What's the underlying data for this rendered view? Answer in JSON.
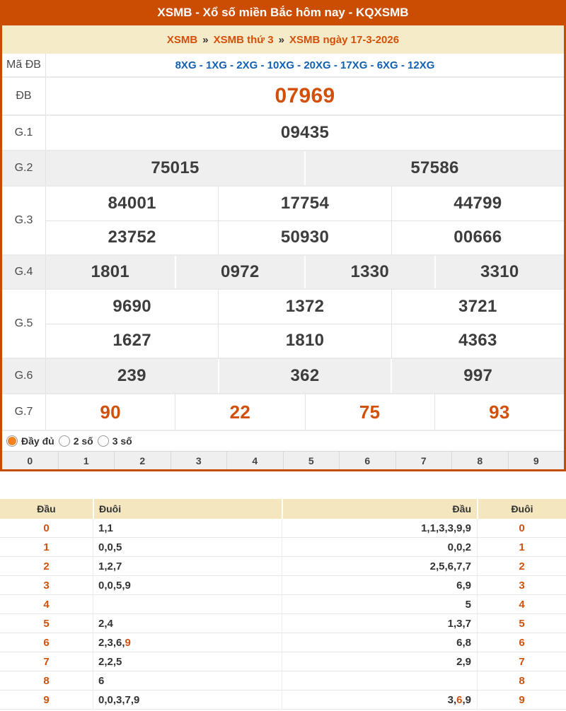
{
  "header": {
    "title": "XSMB - Xổ số miền Bắc hôm nay - KQXSMB"
  },
  "breadcrumb": {
    "separator": "»",
    "items": [
      "XSMB",
      "XSMB thứ 3",
      "XSMB ngày 17-3-2026"
    ]
  },
  "results": {
    "ma_db_label": "Mã ĐB",
    "ma_db_value": "8XG - 1XG - 2XG - 10XG - 20XG - 17XG - 6XG - 12XG",
    "rows": [
      {
        "key": "db",
        "label": "ĐB",
        "grey": false,
        "values": [
          [
            "07969"
          ]
        ]
      },
      {
        "key": "g1",
        "label": "G.1",
        "grey": false,
        "values": [
          [
            "09435"
          ]
        ]
      },
      {
        "key": "g2",
        "label": "G.2",
        "grey": true,
        "values": [
          [
            "75015",
            "57586"
          ]
        ]
      },
      {
        "key": "g3",
        "label": "G.3",
        "grey": false,
        "values": [
          [
            "84001",
            "17754",
            "44799"
          ],
          [
            "23752",
            "50930",
            "00666"
          ]
        ]
      },
      {
        "key": "g4",
        "label": "G.4",
        "grey": true,
        "values": [
          [
            "1801",
            "0972",
            "1330",
            "3310"
          ]
        ]
      },
      {
        "key": "g5",
        "label": "G.5",
        "grey": false,
        "values": [
          [
            "9690",
            "1372",
            "3721"
          ],
          [
            "1627",
            "1810",
            "4363"
          ]
        ]
      },
      {
        "key": "g6",
        "label": "G.6",
        "grey": true,
        "values": [
          [
            "239",
            "362",
            "997"
          ]
        ]
      },
      {
        "key": "g7",
        "label": "G.7",
        "grey": false,
        "values": [
          [
            "90",
            "22",
            "75",
            "93"
          ]
        ]
      }
    ]
  },
  "filters": {
    "options": [
      {
        "label": "Đầy đủ",
        "selected": true
      },
      {
        "label": "2 số",
        "selected": false
      },
      {
        "label": "3 số",
        "selected": false
      }
    ]
  },
  "digit_row": [
    "0",
    "1",
    "2",
    "3",
    "4",
    "5",
    "6",
    "7",
    "8",
    "9"
  ],
  "stats": {
    "header": {
      "dau_left": "Đầu",
      "duoi_left": "Đuôi",
      "dau_right": "Đầu",
      "duoi_right": "Đuôi"
    },
    "rows": [
      {
        "digit": "0",
        "duoi": [
          "1,1"
        ],
        "dau": [
          "1,1,3,3,9,9"
        ]
      },
      {
        "digit": "1",
        "duoi": [
          "0,0,5"
        ],
        "dau": [
          "0,0,2"
        ]
      },
      {
        "digit": "2",
        "duoi": [
          "1,2,7"
        ],
        "dau": [
          "2,5,6,7,7"
        ]
      },
      {
        "digit": "3",
        "duoi": [
          "0,0,5,9"
        ],
        "dau": [
          "6,9"
        ]
      },
      {
        "digit": "4",
        "duoi": [],
        "dau": [
          "5"
        ]
      },
      {
        "digit": "5",
        "duoi": [
          "2,4"
        ],
        "dau": [
          "1,3,7"
        ]
      },
      {
        "digit": "6",
        "duoi": [
          "2,3,6,",
          {
            "t": "9",
            "hl": true
          }
        ],
        "dau": [
          "6,8"
        ]
      },
      {
        "digit": "7",
        "duoi": [
          "2,2,5"
        ],
        "dau": [
          "2,9"
        ]
      },
      {
        "digit": "8",
        "duoi": [
          "6"
        ],
        "dau": []
      },
      {
        "digit": "9",
        "duoi": [
          "0,0,3,7,9"
        ],
        "dau": [
          "3,",
          {
            "t": "6",
            "hl": true
          },
          ",9"
        ]
      }
    ]
  },
  "colors": {
    "brand_orange": "#ca4d02",
    "accent_orange": "#d2500a",
    "link_blue": "#1061b5",
    "cream": "#f4e6be",
    "grey_row": "#efefef"
  }
}
